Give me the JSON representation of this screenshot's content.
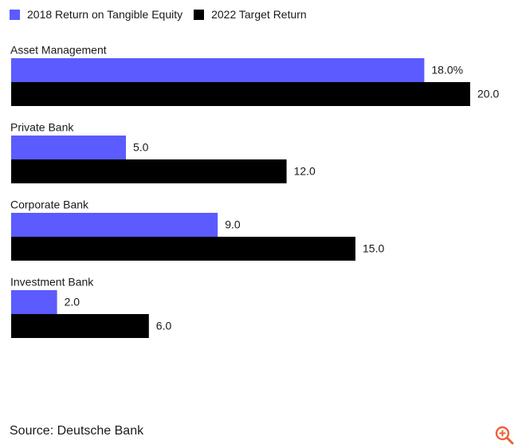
{
  "chart_data": {
    "type": "bar",
    "orientation": "horizontal",
    "categories": [
      "Asset Management",
      "Private Bank",
      "Corporate Bank",
      "Investment Bank"
    ],
    "series": [
      {
        "name": "2018 Return on Tangible Equity",
        "color": "#5b5bff",
        "values": [
          18.0,
          5.0,
          9.0,
          2.0
        ],
        "labels": [
          "18.0%",
          "5.0",
          "9.0",
          "2.0"
        ]
      },
      {
        "name": "2022 Target Return",
        "color": "#000000",
        "values": [
          20.0,
          12.0,
          15.0,
          6.0
        ],
        "labels": [
          "20.0",
          "12.0",
          "15.0",
          "6.0"
        ]
      }
    ],
    "xlim": [
      0,
      20
    ],
    "legend_position": "top-left",
    "grid": false
  },
  "source": "Source: Deutsche Bank",
  "icons": {
    "zoom": "zoom-in-icon",
    "zoom_color": "#e8623a"
  }
}
